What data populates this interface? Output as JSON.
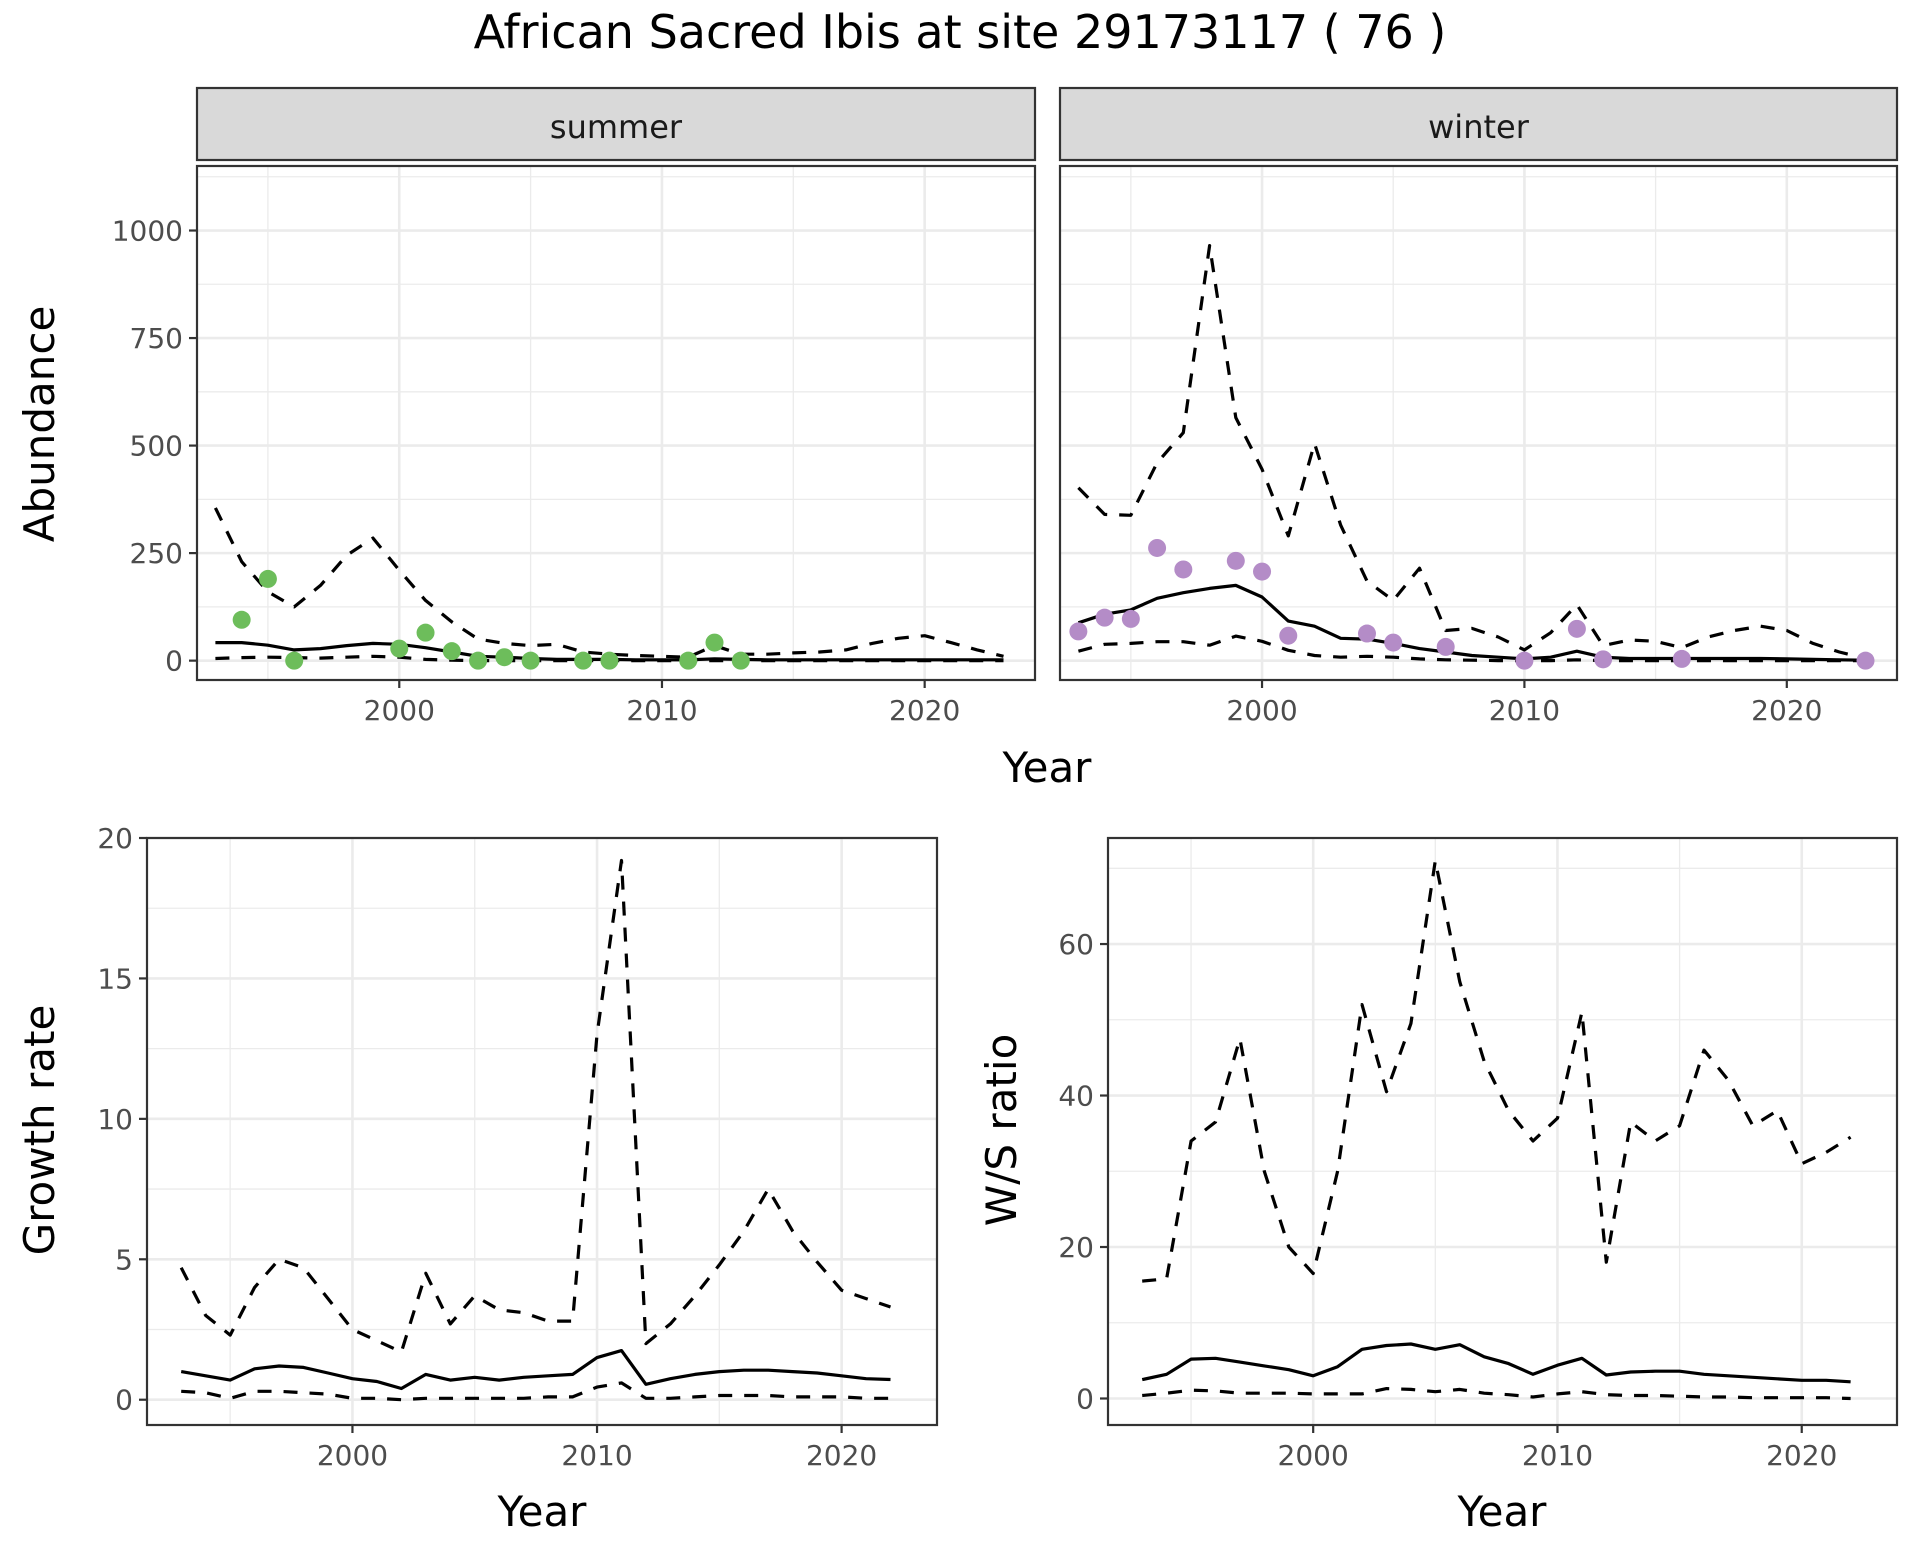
{
  "title": "African Sacred Ibis at site 29173117 ( 76 )",
  "chart_data": [
    {
      "type": "line",
      "panel": "summer",
      "facet_label": "summer",
      "xlabel": "Year",
      "ylabel": "Abundance",
      "xlim": [
        1992.3,
        2024.2
      ],
      "ylim": [
        -45,
        1150
      ],
      "xticks": [
        2000,
        2010,
        2020
      ],
      "yticks": [
        0,
        250,
        500,
        750,
        1000
      ],
      "point_color": "#6dbd5b",
      "points": {
        "x": [
          1994,
          1995,
          1996,
          2000,
          2001,
          2002,
          2003,
          2004,
          2005,
          2007,
          2008,
          2011,
          2012,
          2013
        ],
        "y": [
          95,
          190,
          0,
          28,
          65,
          22,
          0,
          8,
          0,
          0,
          0,
          0,
          42,
          0
        ]
      },
      "series": [
        {
          "name": "estimate",
          "style": "solid",
          "x": [
            1993,
            1994,
            1995,
            1996,
            1997,
            1998,
            1999,
            2000,
            2001,
            2002,
            2003,
            2004,
            2005,
            2006,
            2007,
            2008,
            2009,
            2010,
            2011,
            2012,
            2013,
            2014,
            2015,
            2016,
            2017,
            2018,
            2019,
            2020,
            2021,
            2022,
            2023
          ],
          "y": [
            42,
            42,
            36,
            25,
            28,
            35,
            40,
            38,
            30,
            20,
            10,
            8,
            5,
            3,
            3,
            3,
            2,
            2,
            2,
            4,
            3,
            2,
            2,
            2,
            2,
            2,
            2,
            2,
            2,
            2,
            2
          ]
        },
        {
          "name": "upper",
          "style": "dashed",
          "x": [
            1993,
            1994,
            1995,
            1996,
            1997,
            1998,
            1999,
            2000,
            2001,
            2002,
            2003,
            2004,
            2005,
            2006,
            2007,
            2008,
            2009,
            2010,
            2011,
            2012,
            2013,
            2014,
            2015,
            2016,
            2017,
            2018,
            2019,
            2020,
            2021,
            2022,
            2023
          ],
          "y": [
            355,
            230,
            160,
            125,
            175,
            245,
            285,
            210,
            140,
            90,
            50,
            40,
            35,
            38,
            20,
            15,
            12,
            10,
            8,
            35,
            15,
            15,
            18,
            20,
            25,
            40,
            52,
            58,
            42,
            25,
            10
          ]
        },
        {
          "name": "lower",
          "style": "dashed",
          "x": [
            1993,
            1994,
            1995,
            1996,
            1997,
            1998,
            1999,
            2000,
            2001,
            2002,
            2003,
            2004,
            2005,
            2006,
            2007,
            2008,
            2009,
            2010,
            2011,
            2012,
            2013,
            2014,
            2015,
            2016,
            2017,
            2018,
            2019,
            2020,
            2021,
            2022,
            2023
          ],
          "y": [
            5,
            7,
            8,
            7,
            6,
            8,
            10,
            8,
            3,
            1,
            0,
            0,
            0,
            0,
            0,
            0,
            0,
            0,
            0,
            0,
            0,
            0,
            0,
            0,
            0,
            0,
            0,
            0,
            0,
            0,
            0
          ]
        }
      ]
    },
    {
      "type": "line",
      "panel": "winter",
      "facet_label": "winter",
      "xlabel": "Year",
      "ylabel": "Abundance",
      "xlim": [
        1992.3,
        2024.2
      ],
      "ylim": [
        -45,
        1150
      ],
      "xticks": [
        2000,
        2010,
        2020
      ],
      "yticks": [
        0,
        250,
        500,
        750,
        1000
      ],
      "point_color": "#b48cc7",
      "points": {
        "x": [
          1993,
          1994,
          1995,
          1996,
          1997,
          1999,
          2000,
          2001,
          2004,
          2005,
          2007,
          2010,
          2012,
          2013,
          2016,
          2023
        ],
        "y": [
          68,
          100,
          97,
          262,
          212,
          232,
          207,
          58,
          63,
          42,
          32,
          0,
          74,
          3,
          4,
          0
        ]
      },
      "series": [
        {
          "name": "estimate",
          "style": "solid",
          "x": [
            1993,
            1994,
            1995,
            1996,
            1997,
            1998,
            1999,
            2000,
            2001,
            2002,
            2003,
            2004,
            2005,
            2006,
            2007,
            2008,
            2009,
            2010,
            2011,
            2012,
            2013,
            2014,
            2015,
            2016,
            2017,
            2018,
            2019,
            2020,
            2021,
            2022,
            2023
          ],
          "y": [
            88,
            108,
            118,
            145,
            158,
            168,
            175,
            148,
            92,
            80,
            52,
            50,
            40,
            28,
            20,
            12,
            8,
            4,
            8,
            22,
            8,
            5,
            5,
            5,
            5,
            5,
            5,
            4,
            3,
            2,
            1
          ]
        },
        {
          "name": "upper",
          "style": "dashed",
          "x": [
            1993,
            1994,
            1995,
            1996,
            1997,
            1998,
            1999,
            2000,
            2001,
            2002,
            2003,
            2004,
            2005,
            2006,
            2007,
            2008,
            2009,
            2010,
            2011,
            2012,
            2013,
            2014,
            2015,
            2016,
            2017,
            2018,
            2019,
            2020,
            2021,
            2022,
            2023
          ],
          "y": [
            402,
            340,
            338,
            460,
            530,
            965,
            565,
            445,
            290,
            505,
            315,
            185,
            140,
            215,
            70,
            75,
            55,
            25,
            65,
            130,
            35,
            48,
            45,
            30,
            55,
            70,
            80,
            70,
            40,
            20,
            5
          ]
        },
        {
          "name": "lower",
          "style": "dashed",
          "x": [
            1993,
            1994,
            1995,
            1996,
            1997,
            1998,
            1999,
            2000,
            2001,
            2002,
            2003,
            2004,
            2005,
            2006,
            2007,
            2008,
            2009,
            2010,
            2011,
            2012,
            2013,
            2014,
            2015,
            2016,
            2017,
            2018,
            2019,
            2020,
            2021,
            2022,
            2023
          ],
          "y": [
            22,
            38,
            40,
            44,
            44,
            36,
            57,
            45,
            24,
            12,
            8,
            10,
            8,
            4,
            2,
            1,
            0,
            0,
            0,
            2,
            0,
            0,
            0,
            0,
            0,
            0,
            0,
            0,
            0,
            0,
            0
          ]
        }
      ]
    },
    {
      "type": "line",
      "panel": "growth",
      "xlabel": "Year",
      "ylabel": "Growth rate",
      "xlim": [
        1991.6,
        2023.9
      ],
      "ylim": [
        -0.9,
        20.0
      ],
      "xticks": [
        2000,
        2010,
        2020
      ],
      "yticks": [
        0,
        5,
        10,
        15,
        20
      ],
      "series": [
        {
          "name": "estimate",
          "style": "solid",
          "x": [
            1993,
            1994,
            1995,
            1996,
            1997,
            1998,
            1999,
            2000,
            2001,
            2002,
            2003,
            2004,
            2005,
            2006,
            2007,
            2008,
            2009,
            2010,
            2011,
            2012,
            2013,
            2014,
            2015,
            2016,
            2017,
            2018,
            2019,
            2020,
            2021,
            2022
          ],
          "y": [
            1.0,
            0.85,
            0.7,
            1.1,
            1.2,
            1.15,
            0.95,
            0.75,
            0.65,
            0.4,
            0.9,
            0.7,
            0.8,
            0.7,
            0.8,
            0.85,
            0.9,
            1.5,
            1.75,
            0.55,
            0.75,
            0.9,
            1.0,
            1.05,
            1.05,
            1.0,
            0.95,
            0.85,
            0.75,
            0.72
          ]
        },
        {
          "name": "upper",
          "style": "dashed",
          "x": [
            1993,
            1994,
            1995,
            1996,
            1997,
            1998,
            1999,
            2000,
            2001,
            2002,
            2003,
            2004,
            2005,
            2006,
            2007,
            2008,
            2009,
            2010,
            2011,
            2012,
            2013,
            2014,
            2015,
            2016,
            2017,
            2018,
            2019,
            2020,
            2021,
            2022
          ],
          "y": [
            4.7,
            3.0,
            2.3,
            4.0,
            5.0,
            4.7,
            3.6,
            2.5,
            2.1,
            1.7,
            4.5,
            2.7,
            3.7,
            3.2,
            3.1,
            2.8,
            2.8,
            13.0,
            19.2,
            2.0,
            2.7,
            3.7,
            4.8,
            6.0,
            7.5,
            6.0,
            4.9,
            3.9,
            3.6,
            3.3
          ]
        },
        {
          "name": "lower",
          "style": "dashed",
          "x": [
            1993,
            1994,
            1995,
            1996,
            1997,
            1998,
            1999,
            2000,
            2001,
            2002,
            2003,
            2004,
            2005,
            2006,
            2007,
            2008,
            2009,
            2010,
            2011,
            2012,
            2013,
            2014,
            2015,
            2016,
            2017,
            2018,
            2019,
            2020,
            2021,
            2022
          ],
          "y": [
            0.3,
            0.25,
            0.05,
            0.3,
            0.3,
            0.25,
            0.2,
            0.05,
            0.05,
            0.0,
            0.05,
            0.05,
            0.05,
            0.05,
            0.05,
            0.1,
            0.1,
            0.45,
            0.6,
            0.05,
            0.05,
            0.1,
            0.15,
            0.15,
            0.15,
            0.1,
            0.1,
            0.1,
            0.05,
            0.05
          ]
        }
      ]
    },
    {
      "type": "line",
      "panel": "ws_ratio",
      "xlabel": "Year",
      "ylabel": "W/S ratio",
      "xlim": [
        1991.6,
        2023.9
      ],
      "ylim": [
        -3.5,
        74
      ],
      "xticks": [
        2000,
        2010,
        2020
      ],
      "yticks": [
        0,
        20,
        40,
        60
      ],
      "series": [
        {
          "name": "estimate",
          "style": "solid",
          "x": [
            1993,
            1994,
            1995,
            1996,
            1997,
            1998,
            1999,
            2000,
            2001,
            2002,
            2003,
            2004,
            2005,
            2006,
            2007,
            2008,
            2009,
            2010,
            2011,
            2012,
            2013,
            2014,
            2015,
            2016,
            2017,
            2018,
            2019,
            2020,
            2021,
            2022
          ],
          "y": [
            2.5,
            3.2,
            5.2,
            5.3,
            4.8,
            4.3,
            3.8,
            3.0,
            4.2,
            6.5,
            7.0,
            7.2,
            6.5,
            7.1,
            5.5,
            4.6,
            3.2,
            4.4,
            5.3,
            3.1,
            3.5,
            3.6,
            3.6,
            3.2,
            3.0,
            2.8,
            2.6,
            2.4,
            2.4,
            2.2
          ]
        },
        {
          "name": "upper",
          "style": "dashed",
          "x": [
            1993,
            1994,
            1995,
            1996,
            1997,
            1998,
            1999,
            2000,
            2001,
            2002,
            2003,
            2004,
            2005,
            2006,
            2007,
            2008,
            2009,
            2010,
            2011,
            2012,
            2013,
            2014,
            2015,
            2016,
            2017,
            2018,
            2019,
            2020,
            2021,
            2022
          ],
          "y": [
            15.5,
            15.8,
            34.0,
            36.5,
            47.5,
            30.0,
            20.0,
            16.5,
            30.0,
            52.0,
            40.5,
            49.5,
            71.0,
            55.0,
            44.5,
            38.0,
            34.0,
            37.0,
            51.0,
            18.0,
            36.5,
            34.0,
            36.0,
            46.0,
            42.0,
            36.0,
            38.0,
            31.0,
            32.5,
            34.5
          ]
        },
        {
          "name": "lower",
          "style": "dashed",
          "x": [
            1993,
            1994,
            1995,
            1996,
            1997,
            1998,
            1999,
            2000,
            2001,
            2002,
            2003,
            2004,
            2005,
            2006,
            2007,
            2008,
            2009,
            2010,
            2011,
            2012,
            2013,
            2014,
            2015,
            2016,
            2017,
            2018,
            2019,
            2020,
            2021,
            2022
          ],
          "y": [
            0.4,
            0.7,
            1.1,
            1.0,
            0.7,
            0.7,
            0.7,
            0.6,
            0.6,
            0.6,
            1.3,
            1.2,
            0.9,
            1.2,
            0.7,
            0.5,
            0.2,
            0.6,
            0.9,
            0.5,
            0.4,
            0.4,
            0.3,
            0.2,
            0.2,
            0.1,
            0.1,
            0.1,
            0.1,
            0.0
          ]
        }
      ]
    }
  ]
}
